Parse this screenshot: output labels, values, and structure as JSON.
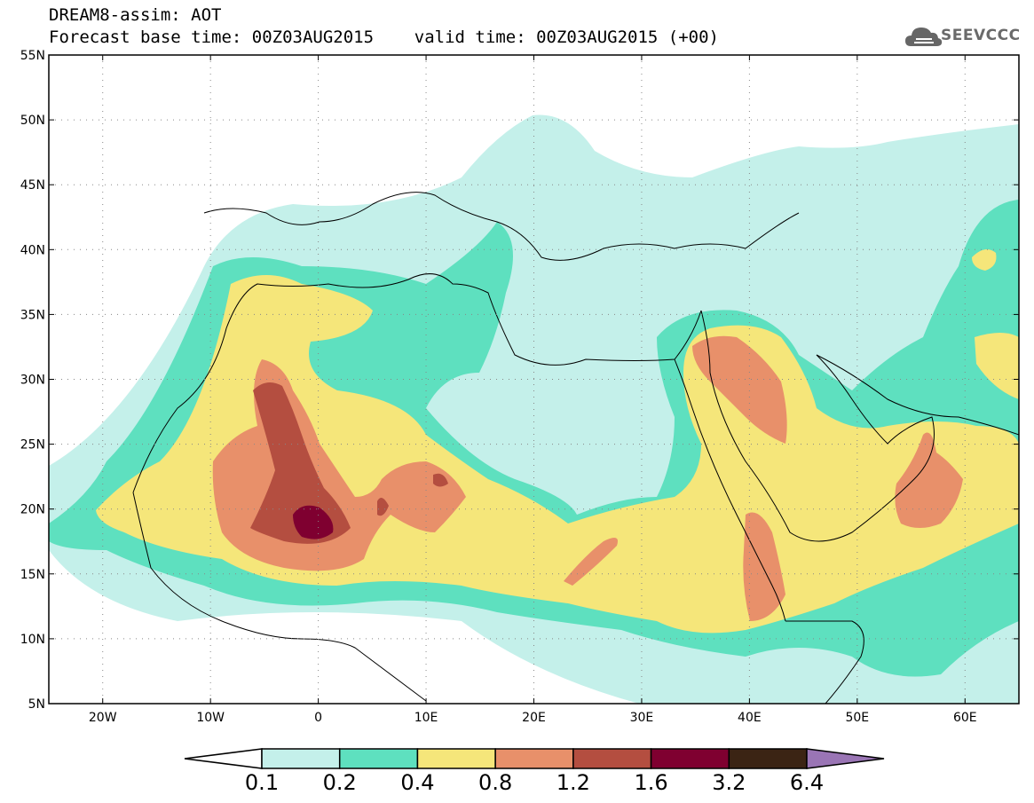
{
  "header": {
    "title_line1": "DREAM8-assim: AOT",
    "title_line2": "Forecast base time: 00Z03AUG2015    valid time: 00Z03AUG2015 (+00)",
    "logo_text": "SEEVCCC"
  },
  "map": {
    "lat_labels": [
      "55N",
      "50N",
      "45N",
      "40N",
      "35N",
      "30N",
      "25N",
      "20N",
      "15N",
      "10N",
      "5N"
    ],
    "lon_labels": [
      "20W",
      "10W",
      "0",
      "10E",
      "20E",
      "30E",
      "40E",
      "50E",
      "60E"
    ],
    "lat_range": [
      5,
      55
    ],
    "lon_range": [
      -25,
      65
    ],
    "gridlines": true
  },
  "colorbar": {
    "labels": [
      "0.1",
      "0.2",
      "0.4",
      "0.8",
      "1.2",
      "1.6",
      "3.2",
      "6.4"
    ],
    "colors": [
      "#ffffff",
      "#c4f0ea",
      "#5ee0bf",
      "#f5e67a",
      "#e8906a",
      "#b44e40",
      "#7f0030",
      "#3b2414",
      "#9a75b5"
    ]
  },
  "aot_levels": {
    "c1": "#c4f0ea",
    "c2": "#5ee0bf",
    "c3": "#f5e67a",
    "c4": "#e8906a",
    "c5": "#b44e40",
    "c6": "#7f0030"
  }
}
